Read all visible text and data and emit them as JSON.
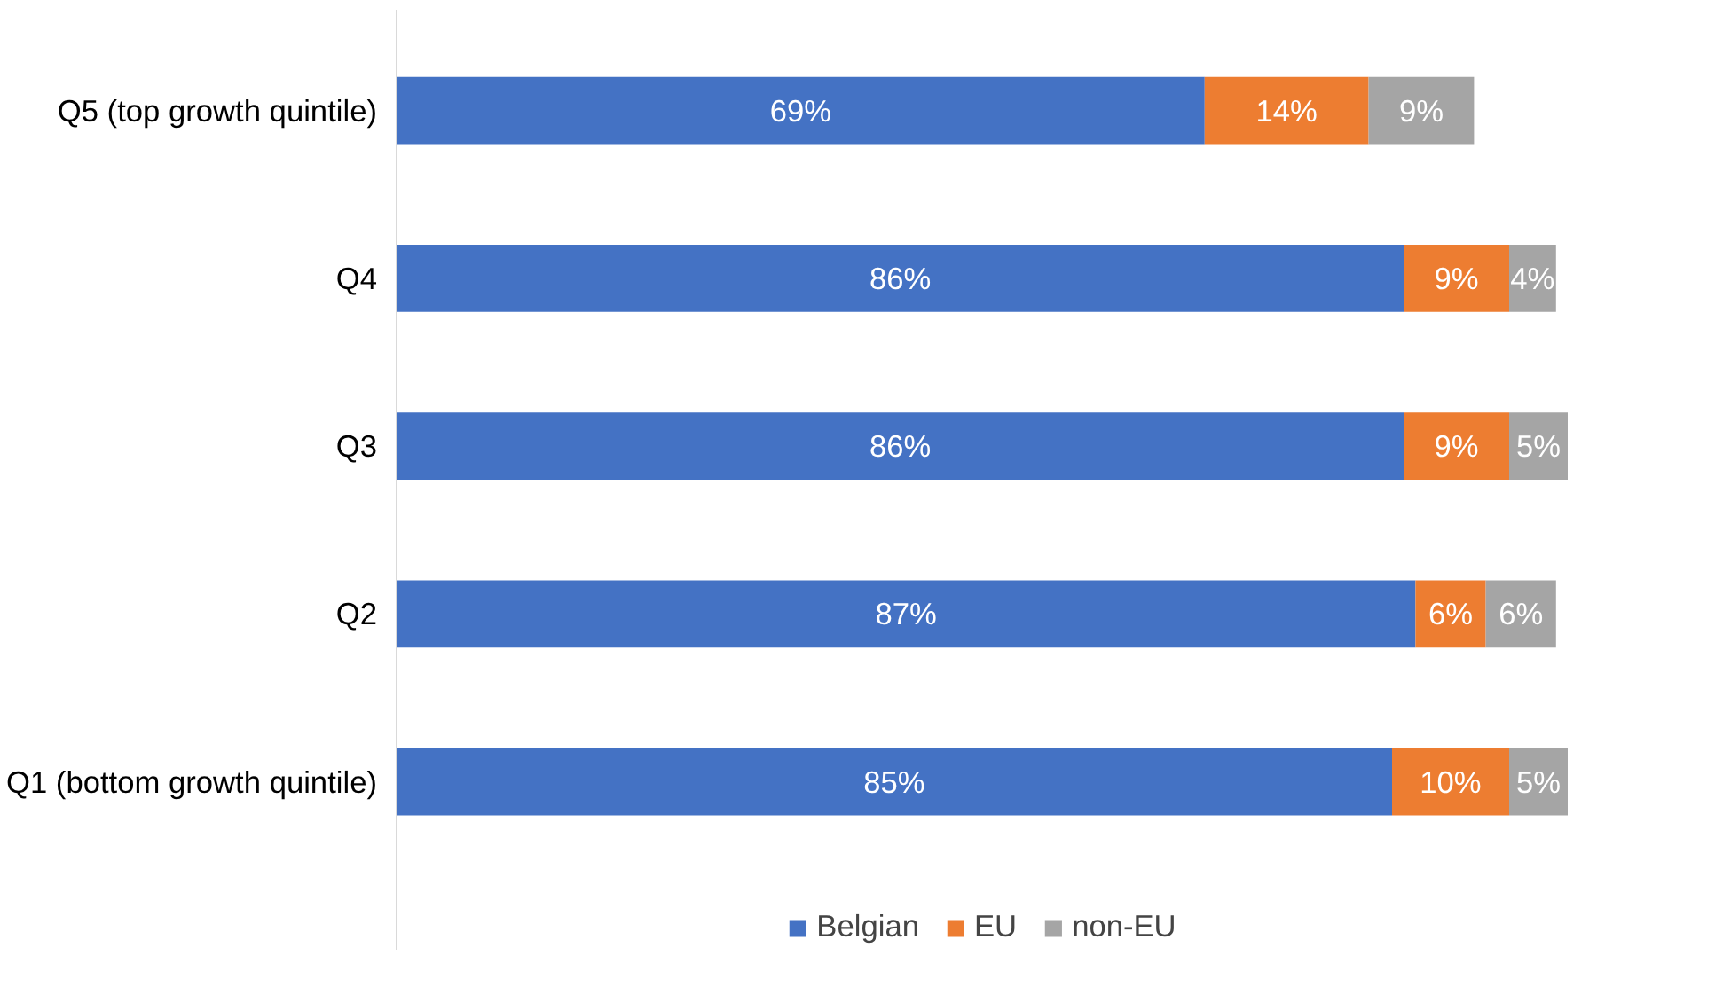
{
  "chart_data": {
    "type": "bar",
    "orientation": "horizontal",
    "stacked": true,
    "categories": [
      "Q5 (top growth quintile)",
      "Q4",
      "Q3",
      "Q2",
      "Q1 (bottom growth quintile)"
    ],
    "series": [
      {
        "name": "Belgian",
        "color": "#4472c4",
        "values": [
          69,
          86,
          86,
          87,
          85
        ],
        "value_labels": [
          "69%",
          "86%",
          "86%",
          "87%",
          "85%"
        ]
      },
      {
        "name": "EU",
        "color": "#ed7d31",
        "values": [
          14,
          9,
          9,
          6,
          10
        ],
        "value_labels": [
          "14%",
          "9%",
          "9%",
          "6%",
          "10%"
        ]
      },
      {
        "name": "non-EU",
        "color": "#a5a5a5",
        "values": [
          9,
          4,
          5,
          6,
          5
        ],
        "value_labels": [
          "9%",
          "4%",
          "5%",
          "6%",
          "5%"
        ]
      }
    ],
    "legend": "bottom",
    "tick_labels": "y"
  }
}
